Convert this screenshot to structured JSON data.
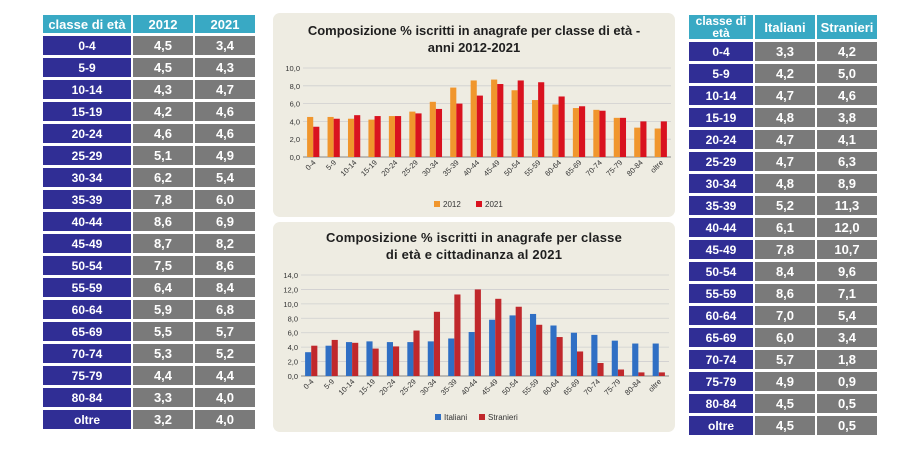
{
  "left_table": {
    "headers": [
      "classe di età",
      "2012",
      "2021"
    ],
    "rows": [
      [
        "0-4",
        "4,5",
        "3,4"
      ],
      [
        "5-9",
        "4,5",
        "4,3"
      ],
      [
        "10-14",
        "4,3",
        "4,7"
      ],
      [
        "15-19",
        "4,2",
        "4,6"
      ],
      [
        "20-24",
        "4,6",
        "4,6"
      ],
      [
        "25-29",
        "5,1",
        "4,9"
      ],
      [
        "30-34",
        "6,2",
        "5,4"
      ],
      [
        "35-39",
        "7,8",
        "6,0"
      ],
      [
        "40-44",
        "8,6",
        "6,9"
      ],
      [
        "45-49",
        "8,7",
        "8,2"
      ],
      [
        "50-54",
        "7,5",
        "8,6"
      ],
      [
        "55-59",
        "6,4",
        "8,4"
      ],
      [
        "60-64",
        "5,9",
        "6,8"
      ],
      [
        "65-69",
        "5,5",
        "5,7"
      ],
      [
        "70-74",
        "5,3",
        "5,2"
      ],
      [
        "75-79",
        "4,4",
        "4,4"
      ],
      [
        "80-84",
        "3,3",
        "4,0"
      ],
      [
        "oltre",
        "3,2",
        "4,0"
      ]
    ]
  },
  "right_table": {
    "headers": [
      "classe di età",
      "Italiani",
      "Stranieri"
    ],
    "rows": [
      [
        "0-4",
        "3,3",
        "4,2"
      ],
      [
        "5-9",
        "4,2",
        "5,0"
      ],
      [
        "10-14",
        "4,7",
        "4,6"
      ],
      [
        "15-19",
        "4,8",
        "3,8"
      ],
      [
        "20-24",
        "4,7",
        "4,1"
      ],
      [
        "25-29",
        "4,7",
        "6,3"
      ],
      [
        "30-34",
        "4,8",
        "8,9"
      ],
      [
        "35-39",
        "5,2",
        "11,3"
      ],
      [
        "40-44",
        "6,1",
        "12,0"
      ],
      [
        "45-49",
        "7,8",
        "10,7"
      ],
      [
        "50-54",
        "8,4",
        "9,6"
      ],
      [
        "55-59",
        "8,6",
        "7,1"
      ],
      [
        "60-64",
        "7,0",
        "5,4"
      ],
      [
        "65-69",
        "6,0",
        "3,4"
      ],
      [
        "70-74",
        "5,7",
        "1,8"
      ],
      [
        "75-79",
        "4,9",
        "0,9"
      ],
      [
        "80-84",
        "4,5",
        "0,5"
      ],
      [
        "oltre",
        "4,5",
        "0,5"
      ]
    ]
  },
  "chart_data": [
    {
      "type": "bar",
      "title_line1": "Composizione % iscritti in anagrafe per classe di età -",
      "title_line2": "anni 2012-2021",
      "categories": [
        "0-4",
        "5-9",
        "10-14",
        "15-19",
        "20-24",
        "25-29",
        "30-34",
        "35-39",
        "40-44",
        "45-49",
        "50-54",
        "55-59",
        "60-64",
        "65-69",
        "70-74",
        "75-79",
        "80-84",
        "oltre"
      ],
      "series": [
        {
          "name": "2012",
          "color": "#f0962d",
          "values": [
            4.5,
            4.5,
            4.3,
            4.2,
            4.6,
            5.1,
            6.2,
            7.8,
            8.6,
            8.7,
            7.5,
            6.4,
            5.9,
            5.5,
            5.3,
            4.4,
            3.3,
            3.2
          ]
        },
        {
          "name": "2021",
          "color": "#d9121f",
          "values": [
            3.4,
            4.3,
            4.7,
            4.6,
            4.6,
            4.9,
            5.4,
            6.0,
            6.9,
            8.2,
            8.6,
            8.4,
            6.8,
            5.7,
            5.2,
            4.4,
            4.0,
            4.0
          ]
        }
      ],
      "ylim": [
        0,
        10
      ],
      "yticks": [
        "0,0",
        "2,0",
        "4,0",
        "6,0",
        "8,0",
        "10,0"
      ],
      "grid": true,
      "legend": "bottom"
    },
    {
      "type": "bar",
      "title_line1": "Composizione % iscritti in anagrafe per classe",
      "title_line2": "di età e cittadinanza al 2021",
      "categories": [
        "0-4",
        "5-9",
        "10-14",
        "15-19",
        "20-24",
        "25-29",
        "30-34",
        "35-39",
        "40-44",
        "45-49",
        "50-54",
        "55-59",
        "60-64",
        "65-69",
        "70-74",
        "75-79",
        "80-84",
        "oltre"
      ],
      "series": [
        {
          "name": "Italiani",
          "color": "#2f6fc4",
          "values": [
            3.3,
            4.2,
            4.7,
            4.8,
            4.7,
            4.7,
            4.8,
            5.2,
            6.1,
            7.8,
            8.4,
            8.6,
            7.0,
            6.0,
            5.7,
            4.9,
            4.5,
            4.5
          ]
        },
        {
          "name": "Stranieri",
          "color": "#c0282c",
          "values": [
            4.2,
            5.0,
            4.6,
            3.8,
            4.1,
            6.3,
            8.9,
            11.3,
            12.0,
            10.7,
            9.6,
            7.1,
            5.4,
            3.4,
            1.8,
            0.9,
            0.5,
            0.5
          ]
        }
      ],
      "ylim": [
        0,
        14
      ],
      "yticks": [
        "0,0",
        "2,0",
        "4,0",
        "6,0",
        "8,0",
        "10,0",
        "12,0",
        "14,0"
      ],
      "grid": true,
      "legend": "bottom"
    }
  ]
}
